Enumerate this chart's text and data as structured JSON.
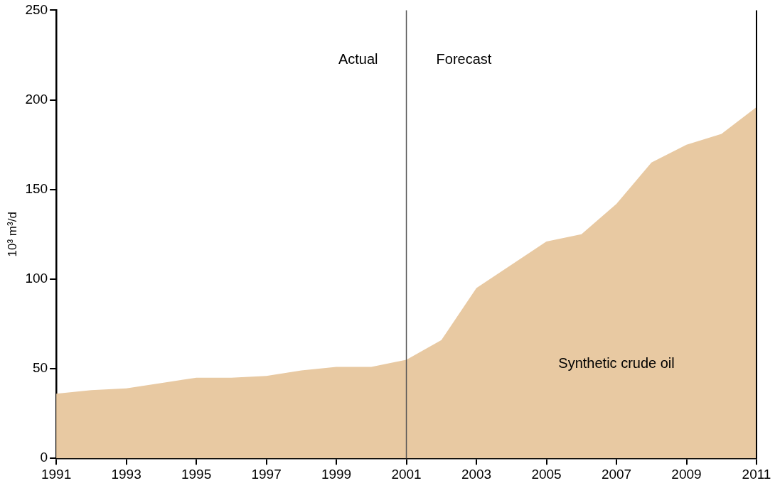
{
  "chart_data": {
    "type": "area",
    "ylabel": "10³ m³/d",
    "x": [
      1991,
      1992,
      1993,
      1994,
      1995,
      1996,
      1997,
      1998,
      1999,
      2000,
      2001,
      2002,
      2003,
      2004,
      2005,
      2006,
      2007,
      2008,
      2009,
      2010,
      2011
    ],
    "series": [
      {
        "name": "Synthetic crude oil",
        "color": "#e8c9a2",
        "values": [
          36,
          38,
          39,
          42,
          45,
          45,
          46,
          49,
          51,
          51,
          55,
          66,
          95,
          108,
          121,
          125,
          142,
          165,
          175,
          181,
          196
        ]
      }
    ],
    "xlim": [
      1991,
      2011
    ],
    "xticks": [
      1991,
      1993,
      1995,
      1997,
      1999,
      2001,
      2003,
      2005,
      2007,
      2009,
      2011
    ],
    "ylim": [
      0,
      250
    ],
    "yticks": [
      0,
      50,
      100,
      150,
      200,
      250
    ],
    "ref_lines": [
      {
        "axis": "x",
        "value": 2001,
        "color": "#555555"
      }
    ],
    "annotations": [
      "Actual",
      "Forecast"
    ],
    "grid": false,
    "legend": false,
    "marker": "none"
  }
}
